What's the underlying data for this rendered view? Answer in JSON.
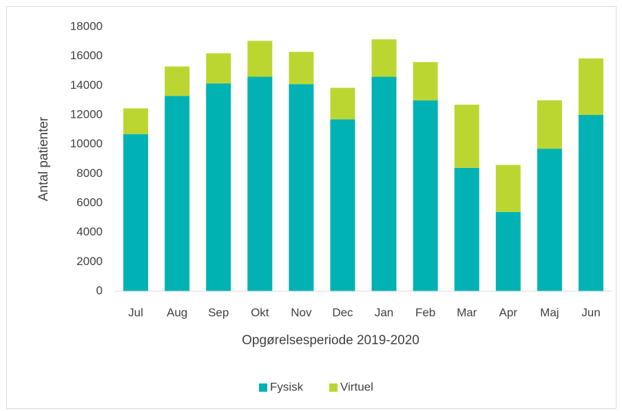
{
  "chart_data": {
    "type": "stacked_bar",
    "categories": [
      "Jul",
      "Aug",
      "Sep",
      "Okt",
      "Nov",
      "Dec",
      "Jan",
      "Feb",
      "Mar",
      "Apr",
      "Maj",
      "Jun"
    ],
    "series": [
      {
        "name": "Fysisk",
        "color": "#00b2b4",
        "values": [
          10700,
          13300,
          14150,
          14600,
          14100,
          11700,
          14600,
          13000,
          8400,
          5400,
          9700,
          12000
        ]
      },
      {
        "name": "Virtuel",
        "color": "#bcd631",
        "values": [
          1750,
          2000,
          2050,
          2450,
          2200,
          2150,
          2550,
          2600,
          4300,
          3200,
          3300,
          3850
        ]
      }
    ],
    "xlabel": "Opgørelsesperiode 2019-2020",
    "ylabel": "Antal patienter",
    "ylim": [
      0,
      18000
    ],
    "yticks": [
      0,
      2000,
      4000,
      6000,
      8000,
      10000,
      12000,
      14000,
      16000,
      18000
    ],
    "grid": false,
    "legend": "bottom"
  }
}
